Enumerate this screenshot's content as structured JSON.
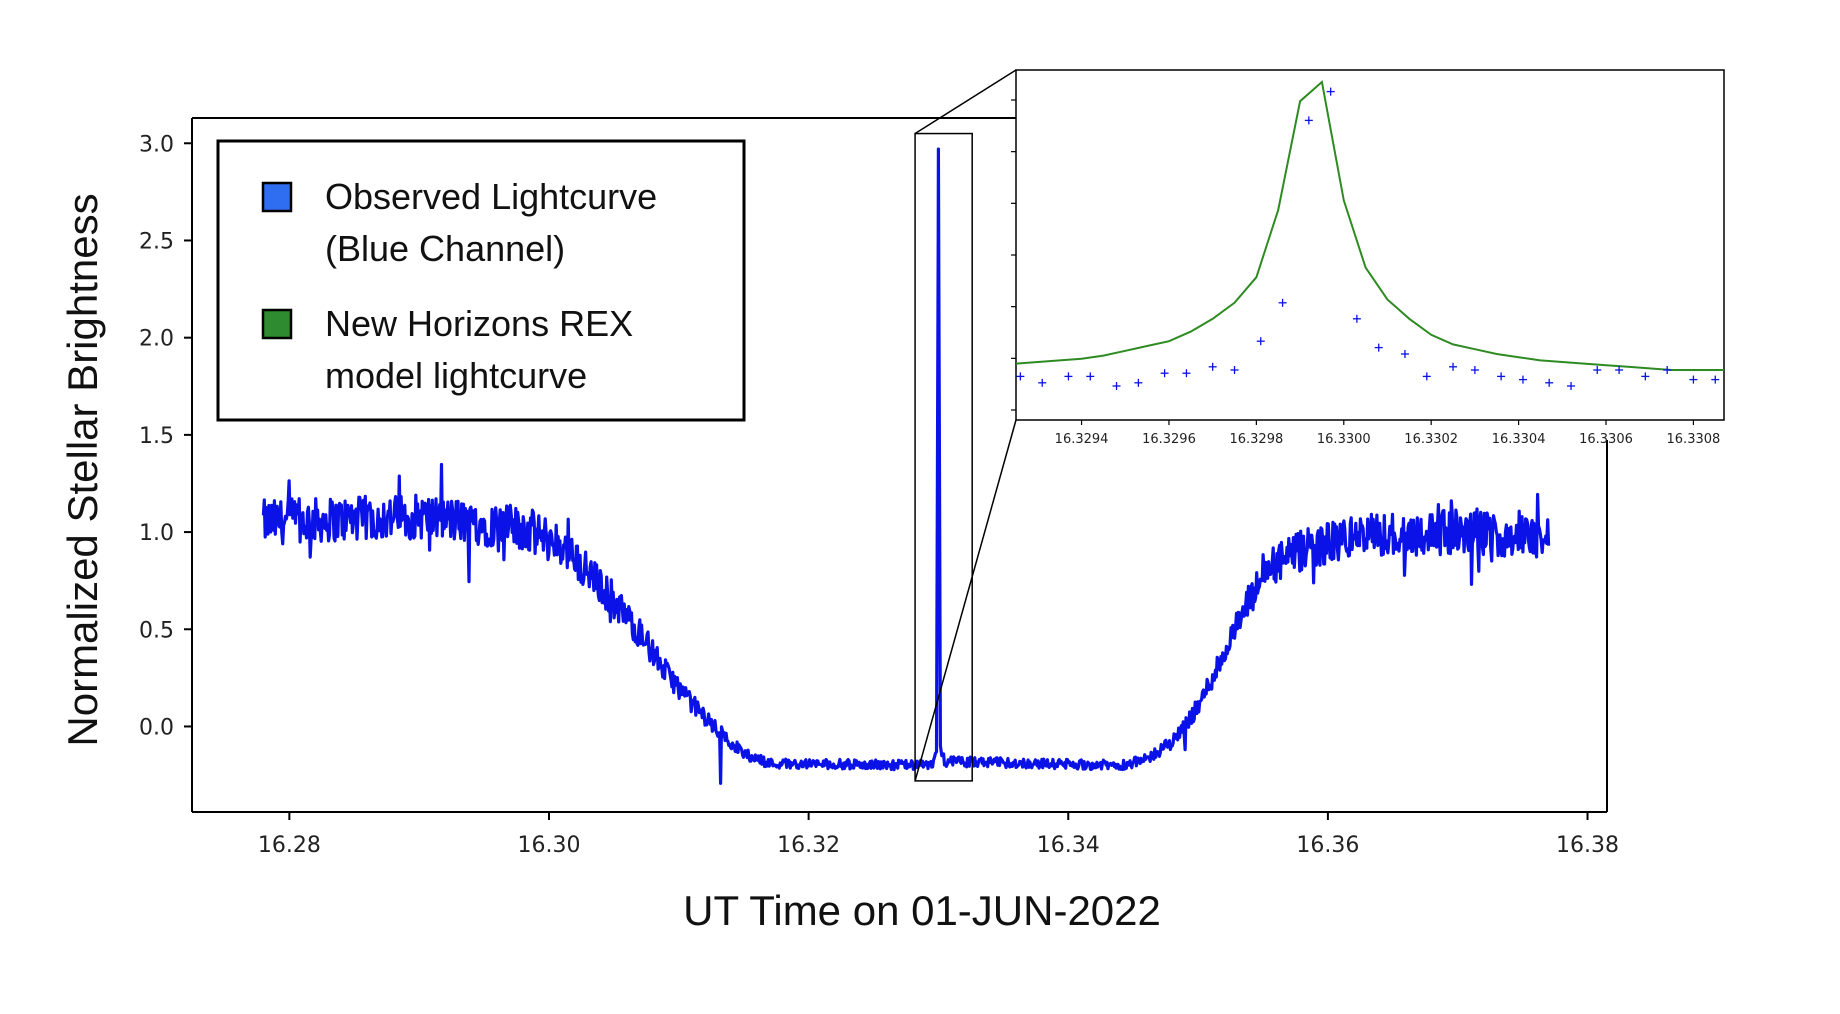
{
  "colors": {
    "observed": "#0a12e8",
    "model": "#2e8b22",
    "legend_observed_swatch": "#2f6ef0",
    "legend_model_swatch": "#2e8b2f",
    "axis": "#000000"
  },
  "chart_data": [
    {
      "id": "main",
      "type": "line",
      "title": "",
      "xlabel": "UT Time on 01-JUN-2022",
      "ylabel": "Normalized Stellar Brightness",
      "xlim": [
        16.2725,
        16.3815
      ],
      "ylim": [
        -0.44,
        3.13
      ],
      "xticks": [
        16.28,
        16.3,
        16.32,
        16.34,
        16.36,
        16.38
      ],
      "xtick_labels": [
        "16.28",
        "16.30",
        "16.32",
        "16.34",
        "16.36",
        "16.38"
      ],
      "yticks": [
        0.0,
        0.5,
        1.0,
        1.5,
        2.0,
        2.5,
        3.0
      ],
      "ytick_labels": [
        "0.0",
        "0.5",
        "1.0",
        "1.5",
        "2.0",
        "2.5",
        "3.0"
      ],
      "grid": false,
      "legend_position": "top-left",
      "legend": [
        {
          "line1": "Observed Lightcurve",
          "line2": "(Blue Channel)",
          "swatch": "observed"
        },
        {
          "line1": "New Horizons REX",
          "line2": "model lightcurve",
          "swatch": "model"
        }
      ],
      "series": [
        {
          "name": "Observed Lightcurve (Blue Channel)",
          "x": [
            16.278,
            16.29,
            16.298,
            16.301,
            16.304,
            16.307,
            16.309,
            16.311,
            16.313,
            16.315,
            16.317,
            16.3295,
            16.32985,
            16.33,
            16.33015,
            16.3305,
            16.344,
            16.346,
            16.348,
            16.35,
            16.352,
            16.354,
            16.3555,
            16.358,
            16.362,
            16.37,
            16.377
          ],
          "y": [
            1.05,
            1.08,
            1.02,
            0.93,
            0.72,
            0.48,
            0.28,
            0.12,
            -0.02,
            -0.14,
            -0.19,
            -0.2,
            -0.13,
            2.97,
            -0.1,
            -0.18,
            -0.2,
            -0.17,
            -0.08,
            0.1,
            0.38,
            0.65,
            0.82,
            0.9,
            0.98,
            1.0,
            0.97
          ],
          "noise_amplitude": 0.07,
          "color": "observed"
        }
      ],
      "zoom_box": {
        "x": [
          16.3282,
          16.3326
        ],
        "y": [
          -0.28,
          3.05
        ]
      }
    },
    {
      "id": "inset",
      "type": "line+scatter",
      "title": "",
      "xlabel": "",
      "ylabel": "",
      "xlim": [
        16.32925,
        16.33087
      ],
      "ylim": [
        0.0,
        1.0
      ],
      "xticks": [
        16.3294,
        16.3296,
        16.3298,
        16.33,
        16.3302,
        16.3304,
        16.3306,
        16.3308
      ],
      "xtick_labels": [
        "16.3294",
        "16.3296",
        "16.3298",
        "16.3300",
        "16.3302",
        "16.3304",
        "16.3306",
        "16.3308"
      ],
      "ytick_count": 7,
      "grid": false,
      "series": [
        {
          "name": "New Horizons REX model lightcurve",
          "type": "line",
          "color": "model",
          "x": [
            16.32925,
            16.3293,
            16.32935,
            16.3294,
            16.32945,
            16.3295,
            16.32955,
            16.3296,
            16.32965,
            16.3297,
            16.32975,
            16.3298,
            16.32985,
            16.3299,
            16.32995,
            16.33,
            16.33005,
            16.3301,
            16.33015,
            16.3302,
            16.33025,
            16.3303,
            16.33035,
            16.3304,
            16.33045,
            16.3305,
            16.33055,
            16.3306,
            16.33065,
            16.3307,
            16.33075,
            16.3308,
            16.33087
          ],
          "y": [
            0.12,
            0.125,
            0.13,
            0.135,
            0.145,
            0.16,
            0.175,
            0.19,
            0.22,
            0.26,
            0.31,
            0.39,
            0.6,
            0.94,
            1.0,
            0.63,
            0.42,
            0.32,
            0.26,
            0.21,
            0.18,
            0.165,
            0.15,
            0.14,
            0.13,
            0.125,
            0.12,
            0.115,
            0.11,
            0.105,
            0.1,
            0.1,
            0.1
          ]
        },
        {
          "name": "Observed points",
          "type": "scatter",
          "marker": "+",
          "color": "observed",
          "x": [
            16.32926,
            16.32931,
            16.32937,
            16.32942,
            16.32948,
            16.32953,
            16.32959,
            16.32964,
            16.3297,
            16.32975,
            16.32981,
            16.32986,
            16.32992,
            16.32997,
            16.33003,
            16.33008,
            16.33014,
            16.33019,
            16.33025,
            16.3303,
            16.33036,
            16.33041,
            16.33047,
            16.33052,
            16.33058,
            16.33063,
            16.33069,
            16.33074,
            16.3308,
            16.33085
          ],
          "y": [
            0.08,
            0.06,
            0.08,
            0.08,
            0.05,
            0.06,
            0.09,
            0.09,
            0.11,
            0.1,
            0.19,
            0.31,
            0.88,
            0.97,
            0.26,
            0.17,
            0.15,
            0.08,
            0.11,
            0.1,
            0.08,
            0.07,
            0.06,
            0.05,
            0.1,
            0.1,
            0.08,
            0.1,
            0.07,
            0.07
          ]
        }
      ]
    }
  ]
}
